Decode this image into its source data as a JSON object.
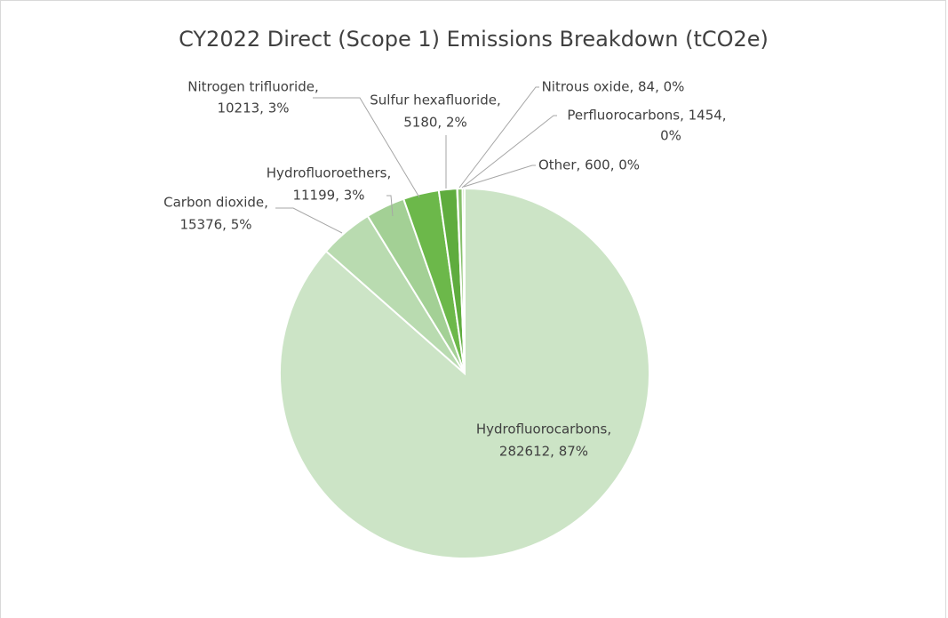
{
  "chart_data": {
    "type": "pie",
    "title": "CY2022 Direct (Scope 1) Emissions Breakdown (tCO2e)",
    "values": [
      282612,
      15376,
      11199,
      10213,
      5180,
      84,
      1454,
      600
    ],
    "labels": [
      [
        "Hydrofluorocarbons,",
        "282612, 87%"
      ],
      [
        "Carbon dioxide,",
        "15376, 5%"
      ],
      [
        "Hydrofluoroethers,",
        "11199, 3%"
      ],
      [
        "Nitrogen trifluoride,",
        "10213, 3%"
      ],
      [
        "Sulfur hexafluoride,",
        "5180, 2%"
      ],
      [
        "Nitrous oxide, 84, 0%"
      ],
      [
        "Perfluorocarbons, 1454,",
        "0%"
      ],
      [
        "Other, 600, 0%"
      ]
    ],
    "colors": [
      "#cce4c6",
      "#b9dbb0",
      "#a3d095",
      "#6cb84a",
      "#5fac3e",
      "#4e9a33",
      "#86c06a",
      "#a9d48f"
    ]
  }
}
